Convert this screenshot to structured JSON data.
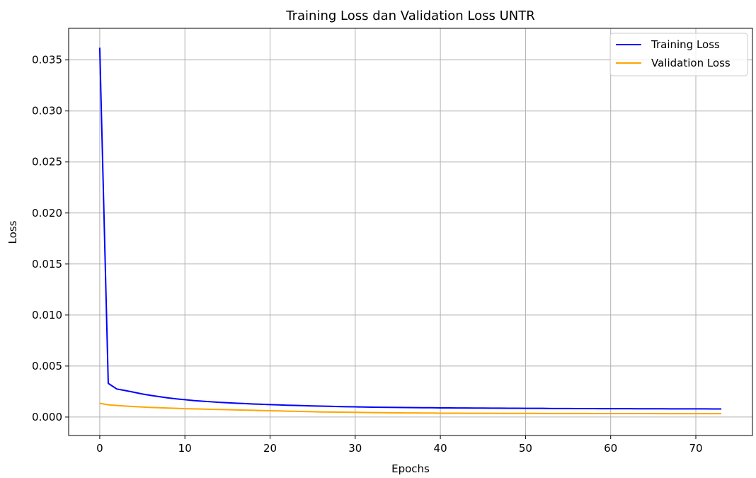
{
  "chart_data": {
    "type": "line",
    "title": "Training Loss dan Validation Loss UNTR",
    "xlabel": "Epochs",
    "ylabel": "Loss",
    "xlim": [
      -3.65,
      76.65
    ],
    "ylim": [
      -0.00181,
      0.0381
    ],
    "xticks": [
      0,
      10,
      20,
      30,
      40,
      50,
      60,
      70
    ],
    "yticks": [
      0.0,
      0.005,
      0.01,
      0.015,
      0.02,
      0.025,
      0.03,
      0.035
    ],
    "ytick_labels": [
      "0.000",
      "0.005",
      "0.010",
      "0.015",
      "0.020",
      "0.025",
      "0.030",
      "0.035"
    ],
    "grid": true,
    "legend": "top-right",
    "x": [
      0,
      1,
      2,
      3,
      4,
      5,
      6,
      7,
      8,
      9,
      10,
      11,
      12,
      13,
      14,
      15,
      16,
      17,
      18,
      19,
      20,
      21,
      22,
      23,
      24,
      25,
      26,
      27,
      28,
      29,
      30,
      31,
      32,
      33,
      34,
      35,
      36,
      37,
      38,
      39,
      40,
      41,
      42,
      43,
      44,
      45,
      46,
      47,
      48,
      49,
      50,
      51,
      52,
      53,
      54,
      55,
      56,
      57,
      58,
      59,
      60,
      61,
      62,
      63,
      64,
      65,
      66,
      67,
      68,
      69,
      70,
      71,
      72,
      73
    ],
    "series": [
      {
        "name": "Training Loss",
        "color": "#0000ff",
        "values": [
          0.0362,
          0.0033,
          0.00275,
          0.0026,
          0.00243,
          0.00226,
          0.00212,
          0.002,
          0.00188,
          0.00178,
          0.0017,
          0.00162,
          0.00156,
          0.0015,
          0.00144,
          0.0014,
          0.00136,
          0.00132,
          0.00128,
          0.00125,
          0.00122,
          0.00119,
          0.00116,
          0.00114,
          0.00111,
          0.00109,
          0.00107,
          0.00105,
          0.00103,
          0.00101,
          0.001,
          0.00098,
          0.00097,
          0.00096,
          0.00095,
          0.00094,
          0.00093,
          0.00092,
          0.00091,
          0.00091,
          0.0009,
          0.0009,
          0.00089,
          0.00089,
          0.00088,
          0.00088,
          0.00087,
          0.00087,
          0.00086,
          0.00086,
          0.00085,
          0.00085,
          0.00085,
          0.00084,
          0.00084,
          0.00084,
          0.00083,
          0.00083,
          0.00083,
          0.00082,
          0.00082,
          0.00082,
          0.00082,
          0.00081,
          0.00081,
          0.00081,
          0.00081,
          0.0008,
          0.0008,
          0.0008,
          0.0008,
          0.0008,
          0.00079,
          0.00079
        ]
      },
      {
        "name": "Validation Loss",
        "color": "#ffa500",
        "values": [
          0.00135,
          0.0012,
          0.00113,
          0.00108,
          0.00103,
          0.00098,
          0.00094,
          0.00091,
          0.00088,
          0.00085,
          0.00082,
          0.0008,
          0.00078,
          0.00076,
          0.00074,
          0.00072,
          0.0007,
          0.00068,
          0.00066,
          0.00064,
          0.00062,
          0.0006,
          0.00058,
          0.00056,
          0.00054,
          0.00052,
          0.0005,
          0.00049,
          0.00048,
          0.00047,
          0.00046,
          0.00045,
          0.00044,
          0.00043,
          0.00042,
          0.00041,
          0.0004,
          0.0004,
          0.00039,
          0.00039,
          0.00038,
          0.00038,
          0.00038,
          0.00037,
          0.00037,
          0.00037,
          0.00037,
          0.00036,
          0.00036,
          0.00036,
          0.00036,
          0.00036,
          0.00035,
          0.00035,
          0.00035,
          0.00035,
          0.00035,
          0.00035,
          0.00034,
          0.00034,
          0.00034,
          0.00034,
          0.00034,
          0.00034,
          0.00034,
          0.00034,
          0.00033,
          0.00033,
          0.00033,
          0.00033,
          0.00033,
          0.00033,
          0.00033,
          0.00033
        ]
      }
    ]
  }
}
